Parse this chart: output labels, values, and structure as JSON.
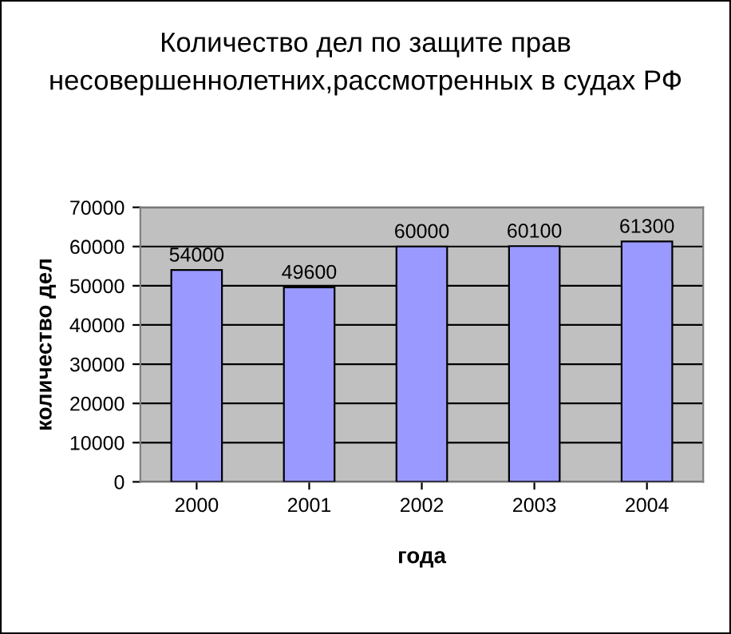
{
  "chart_data": {
    "type": "bar",
    "title": "Количество дел по защите прав несовершеннолетних,рассмотренных в судах РФ",
    "xlabel": "года",
    "ylabel": "количество дел",
    "categories": [
      "2000",
      "2001",
      "2002",
      "2003",
      "2004"
    ],
    "values": [
      54000,
      49600,
      60000,
      60100,
      61300
    ],
    "color": "#9999ff",
    "ylim": [
      0,
      70000
    ],
    "yticks": [
      0,
      10000,
      20000,
      30000,
      40000,
      50000,
      60000,
      70000
    ],
    "grid": "y",
    "data_labels": true,
    "legend": false
  }
}
